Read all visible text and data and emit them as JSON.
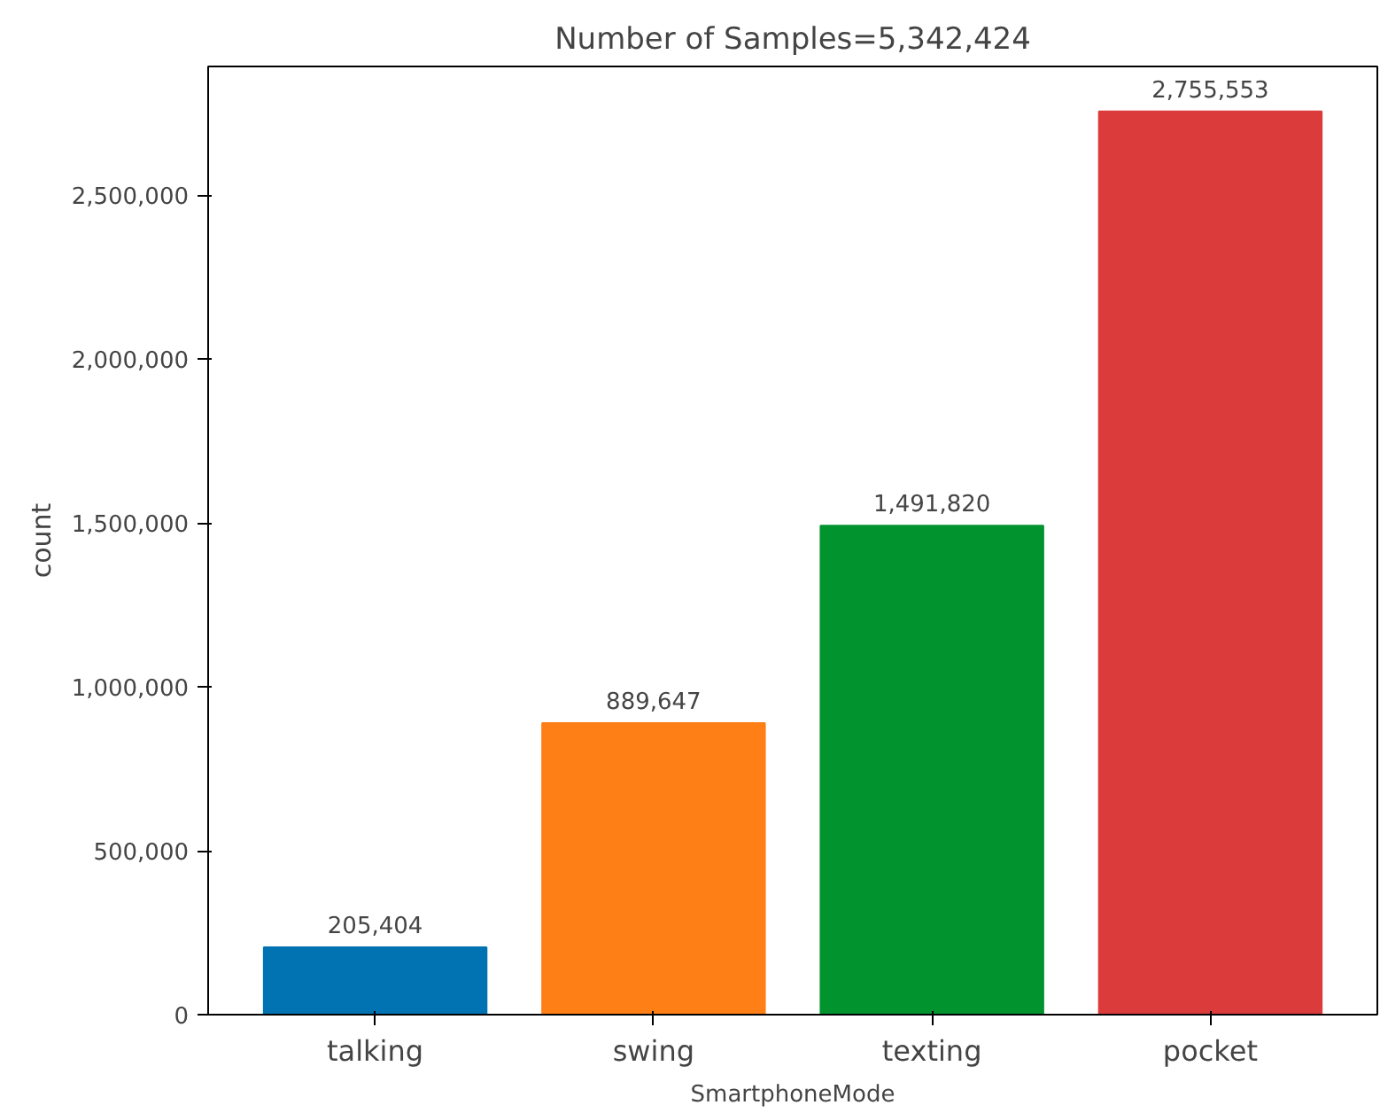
{
  "chart_data": {
    "type": "bar",
    "title": "Number of Samples=5,342,424",
    "xlabel": "SmartphoneMode",
    "ylabel": "count",
    "categories": [
      "talking",
      "swing",
      "texting",
      "pocket"
    ],
    "values": [
      205404,
      889647,
      1491820,
      2755553
    ],
    "colors": [
      "#0173b2",
      "#fd7f16",
      "#00932e",
      "#dc3b3b"
    ],
    "value_labels": [
      "205,404",
      "889,647",
      "1,491,820",
      "2,755,553"
    ],
    "ylim": [
      0,
      2893000
    ],
    "yticks": [
      {
        "value": 0,
        "label": "0"
      },
      {
        "value": 500000,
        "label": "500,000"
      },
      {
        "value": 1000000,
        "label": "1,000,000"
      },
      {
        "value": 1500000,
        "label": "1,500,000"
      },
      {
        "value": 2000000,
        "label": "2,000,000"
      },
      {
        "value": 2500000,
        "label": "2,500,000"
      }
    ],
    "grid": false
  }
}
